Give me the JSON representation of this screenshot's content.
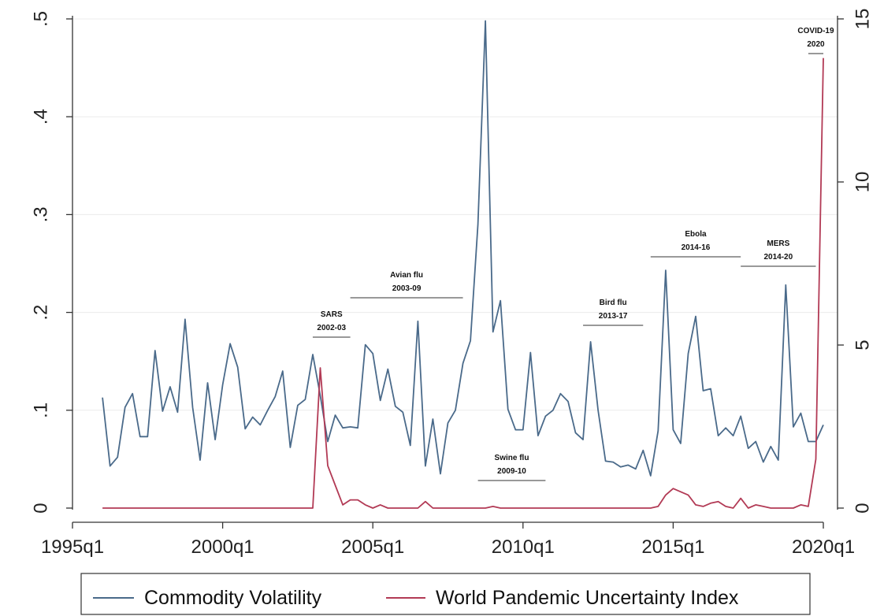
{
  "chart_data": {
    "type": "line",
    "x_axis": {
      "start": "1996q1",
      "end": "2020q1",
      "ticks": [
        "1995q1",
        "2000q1",
        "2005q1",
        "2010q1",
        "2015q1",
        "2020q1"
      ]
    },
    "y_left": {
      "ylim": [
        0,
        0.5
      ],
      "ticks": [
        "0",
        ".1",
        ".2",
        ".3",
        ".4",
        ".5"
      ]
    },
    "y_right": {
      "ylim": [
        0,
        15
      ],
      "ticks": [
        "0",
        "5",
        "10",
        "15"
      ]
    },
    "grid": "horizontal",
    "legend_position": "bottom",
    "series": [
      {
        "name": "Commodity Volatility",
        "axis": "left",
        "color": "#4a6a8a",
        "x_start": "1996q1",
        "values": [
          0.113,
          0.043,
          0.052,
          0.103,
          0.117,
          0.073,
          0.073,
          0.161,
          0.099,
          0.124,
          0.098,
          0.193,
          0.103,
          0.049,
          0.128,
          0.07,
          0.126,
          0.168,
          0.144,
          0.081,
          0.093,
          0.085,
          0.1,
          0.114,
          0.14,
          0.062,
          0.105,
          0.111,
          0.157,
          0.115,
          0.068,
          0.095,
          0.082,
          0.083,
          0.082,
          0.167,
          0.158,
          0.11,
          0.142,
          0.104,
          0.098,
          0.064,
          0.191,
          0.043,
          0.091,
          0.035,
          0.087,
          0.1,
          0.148,
          0.171,
          0.29,
          0.498,
          0.18,
          0.212,
          0.101,
          0.08,
          0.08,
          0.159,
          0.074,
          0.094,
          0.1,
          0.117,
          0.109,
          0.077,
          0.07,
          0.17,
          0.1,
          0.048,
          0.047,
          0.042,
          0.044,
          0.04,
          0.059,
          0.033,
          0.079,
          0.243,
          0.08,
          0.066,
          0.158,
          0.196,
          0.12,
          0.122,
          0.074,
          0.082,
          0.074,
          0.094,
          0.061,
          0.068,
          0.047,
          0.063,
          0.049,
          0.228,
          0.083,
          0.097,
          0.068,
          0.068,
          0.085
        ]
      },
      {
        "name": "World Pandemic Uncertainty Index",
        "axis": "right",
        "color": "#b23a55",
        "x_start": "1996q1",
        "values": [
          0,
          0,
          0,
          0,
          0,
          0,
          0,
          0,
          0,
          0,
          0,
          0,
          0,
          0,
          0,
          0,
          0,
          0,
          0,
          0,
          0,
          0,
          0,
          0,
          0,
          0,
          0,
          0,
          0,
          4.3,
          1.3,
          0.7,
          0.1,
          0.25,
          0.25,
          0.1,
          0,
          0.1,
          0,
          0,
          0,
          0,
          0,
          0.2,
          0,
          0,
          0,
          0,
          0,
          0,
          0,
          0,
          0.05,
          0,
          0,
          0,
          0,
          0,
          0,
          0,
          0,
          0,
          0,
          0,
          0,
          0,
          0,
          0,
          0,
          0,
          0,
          0,
          0,
          0,
          0.05,
          0.4,
          0.6,
          0.5,
          0.4,
          0.1,
          0.05,
          0.15,
          0.2,
          0.05,
          0,
          0.3,
          0,
          0.1,
          0.05,
          0,
          0,
          0,
          0,
          0.1,
          0.05,
          1.5,
          13.8
        ]
      }
    ],
    "annotations": [
      {
        "lines": [
          "SARS",
          "2002-03"
        ],
        "x_from": "2003q1",
        "x_to": "2004q2"
      },
      {
        "lines": [
          "Avian flu",
          "2003-09"
        ],
        "x_from": "2004q2",
        "x_to": "2008q1"
      },
      {
        "lines": [
          "Swine flu",
          "2009-10"
        ],
        "x_from": "2008q3",
        "x_to": "2010q4"
      },
      {
        "lines": [
          "Bird flu",
          "2013-17"
        ],
        "x_from": "2012q1",
        "x_to": "2014q1"
      },
      {
        "lines": [
          "Ebola",
          "2014-16"
        ],
        "x_from": "2014q2",
        "x_to": "2017q2"
      },
      {
        "lines": [
          "MERS",
          "2014-20"
        ],
        "x_from": "2017q2",
        "x_to": "2019q4"
      },
      {
        "lines": [
          "COVID-19",
          "2020"
        ],
        "x_from": "2019q3",
        "x_to": "2020q1"
      }
    ]
  }
}
